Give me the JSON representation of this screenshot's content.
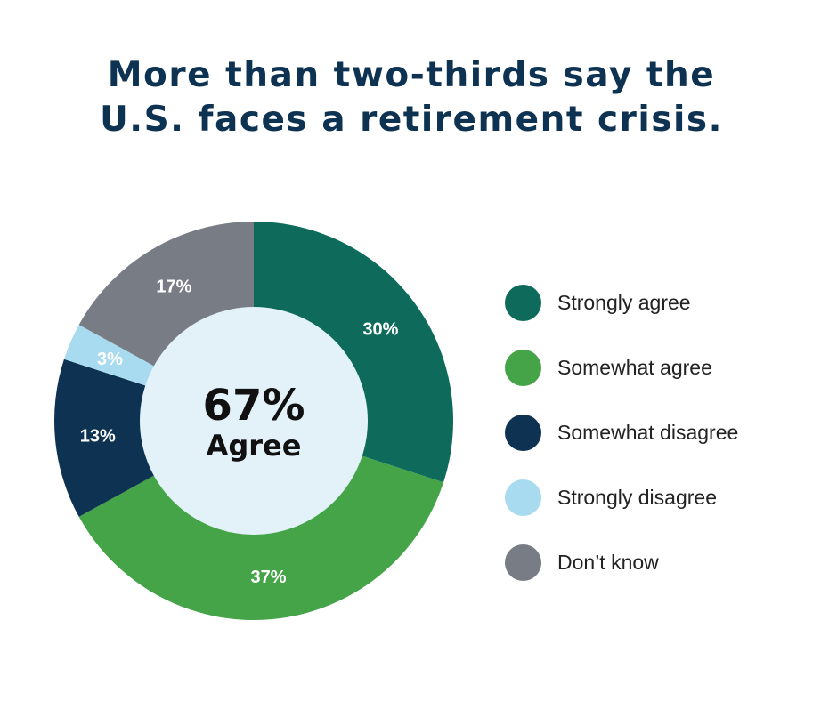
{
  "chart_data": {
    "type": "pie",
    "title": [
      "More than two-thirds say the",
      "U.S. faces a retirement crisis."
    ],
    "center_label": {
      "value": "67%",
      "text": "Agree"
    },
    "legend_position": "right",
    "series": [
      {
        "name": "Strongly agree",
        "value": 30,
        "label": "30%",
        "color": "#0e6b5b"
      },
      {
        "name": "Somewhat agree",
        "value": 37,
        "label": "37%",
        "color": "#45a348"
      },
      {
        "name": "Somewhat disagree",
        "value": 13,
        "label": "13%",
        "color": "#0d3252"
      },
      {
        "name": "Strongly disagree",
        "value": 3,
        "label": "3%",
        "color": "#a8dbef"
      },
      {
        "name": "Don’t know",
        "value": 17,
        "label": "17%",
        "color": "#777c85"
      }
    ],
    "center_fill": "#e3f1f8"
  }
}
